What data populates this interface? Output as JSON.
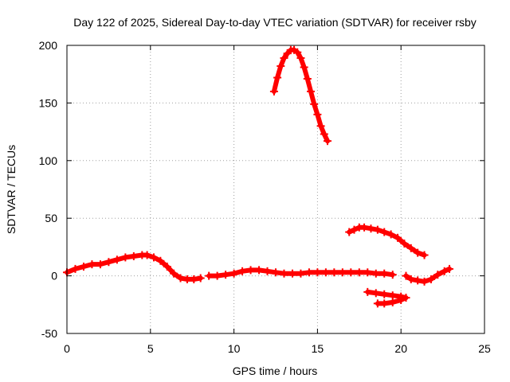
{
  "chart_data": {
    "type": "line",
    "title": "Day 122 of 2025, Sidereal Day-to-day VTEC variation (SDTVAR) for receiver rsby",
    "xlabel": "GPS time / hours",
    "ylabel": "SDTVAR / TECUs",
    "xlim": [
      0,
      25
    ],
    "ylim": [
      -50,
      200
    ],
    "xticks": [
      0,
      5,
      10,
      15,
      20,
      25
    ],
    "yticks": [
      -50,
      0,
      50,
      100,
      150,
      200
    ],
    "grid": true,
    "series_color": "#ff0000",
    "marker": "plus",
    "series": [
      {
        "x": [
          0.0,
          0.5,
          1.0,
          1.5,
          2.0,
          2.5,
          3.0,
          3.5,
          4.0,
          4.5,
          4.8,
          5.2,
          5.6,
          6.0,
          6.4,
          6.8,
          7.2,
          7.6,
          8.0
        ],
        "y": [
          3,
          6,
          8,
          10,
          10,
          12,
          14,
          16,
          17,
          18,
          18,
          16,
          13,
          8,
          2,
          -2,
          -3,
          -3,
          -2
        ]
      },
      {
        "x": [
          8.5,
          9.0,
          9.5,
          10.0,
          10.5,
          11.0,
          11.5,
          12.0,
          12.5,
          13.0,
          13.5,
          14.0,
          14.5,
          15.0,
          15.5,
          16.0,
          16.5,
          17.0,
          17.5,
          18.0,
          18.5,
          19.0,
          19.5
        ],
        "y": [
          0,
          0,
          1,
          2,
          4,
          5,
          5,
          4,
          3,
          2,
          2,
          2,
          3,
          3,
          3,
          3,
          3,
          3,
          3,
          3,
          2,
          2,
          1
        ]
      },
      {
        "x": [
          12.4,
          12.6,
          12.8,
          13.0,
          13.2,
          13.4,
          13.6,
          13.8,
          14.0,
          14.2,
          14.4,
          14.6,
          14.8,
          15.0,
          15.2,
          15.4,
          15.6
        ],
        "y": [
          160,
          172,
          182,
          189,
          193,
          196,
          196,
          194,
          189,
          181,
          171,
          160,
          149,
          140,
          130,
          123,
          117
        ]
      },
      {
        "x": [
          16.9,
          17.2,
          17.5,
          17.8,
          18.2,
          18.6,
          19.0,
          19.4,
          19.8,
          20.2,
          20.6,
          21.0,
          21.4
        ],
        "y": [
          38,
          40,
          42,
          42,
          41,
          40,
          38,
          36,
          33,
          28,
          24,
          20,
          18
        ]
      },
      {
        "x": [
          20.3,
          20.6,
          21.0,
          21.4,
          21.8,
          22.2,
          22.6,
          22.9
        ],
        "y": [
          0,
          -3,
          -4,
          -5,
          -3,
          1,
          4,
          6
        ]
      },
      {
        "x": [
          18.0,
          18.5,
          19.0,
          19.5,
          20.0,
          20.3,
          20.0,
          19.5,
          19.0,
          18.6
        ],
        "y": [
          -14,
          -15,
          -16,
          -17,
          -18,
          -19,
          -21,
          -23,
          -24,
          -24
        ]
      }
    ]
  }
}
